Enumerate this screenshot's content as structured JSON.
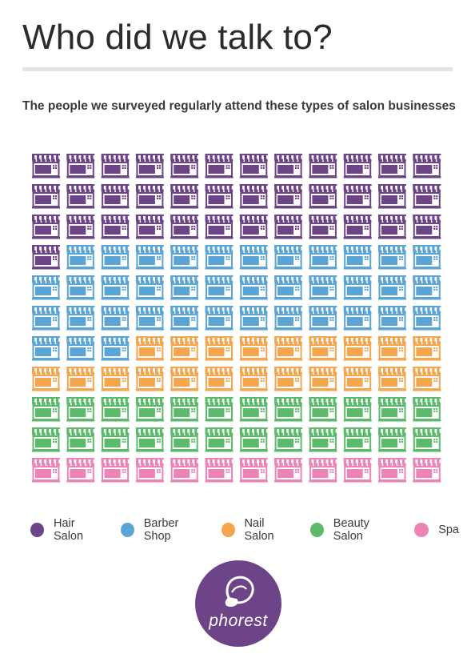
{
  "header": {
    "title": "Who did we talk to?",
    "subtitle": "The people we surveyed regularly attend these types of salon businesses"
  },
  "chart_data": {
    "type": "waffle",
    "grid": {
      "columns": 12,
      "rows": 11
    },
    "icon": "storefront-icon",
    "series": [
      {
        "name": "Hair Salon",
        "count": 37,
        "color": "#6e4488"
      },
      {
        "name": "Barber Shop",
        "count": 38,
        "color": "#5aa4d6"
      },
      {
        "name": "Nail Salon",
        "count": 21,
        "color": "#f4a54d"
      },
      {
        "name": "Beauty Salon",
        "count": 24,
        "color": "#5cbb6b"
      },
      {
        "name": "Spa",
        "count": 12,
        "color": "#ee83b8"
      }
    ]
  },
  "legend": {
    "items": [
      {
        "label": "Hair Salon",
        "color": "#6e4488"
      },
      {
        "label": "Barber Shop",
        "color": "#5aa4d6"
      },
      {
        "label": "Nail Salon",
        "color": "#f4a54d"
      },
      {
        "label": "Beauty Salon",
        "color": "#5cbb6b"
      },
      {
        "label": "Spa",
        "color": "#ee83b8"
      }
    ]
  },
  "logo": {
    "text": "phorest",
    "color": "#6e4488"
  }
}
